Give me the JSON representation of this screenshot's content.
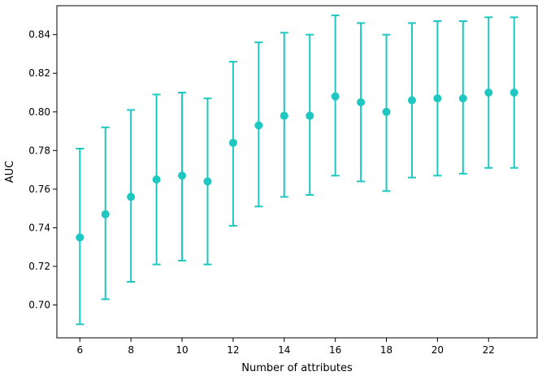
{
  "chart_data": {
    "type": "scatter",
    "title": "",
    "xlabel": "Number of attributes",
    "ylabel": "AUC",
    "xlim": [
      5.1,
      23.9
    ],
    "ylim": [
      0.683,
      0.855
    ],
    "xticks": [
      6,
      8,
      10,
      12,
      14,
      16,
      18,
      20,
      22
    ],
    "yticks": [
      0.7,
      0.72,
      0.74,
      0.76,
      0.78,
      0.8,
      0.82,
      0.84
    ],
    "xtick_labels": [
      "6",
      "8",
      "10",
      "12",
      "14",
      "16",
      "18",
      "20",
      "22"
    ],
    "ytick_labels": [
      "0.70",
      "0.72",
      "0.74",
      "0.76",
      "0.78",
      "0.80",
      "0.82",
      "0.84"
    ],
    "grid": false,
    "color": "#1fc7c1",
    "x": [
      6,
      7,
      8,
      9,
      10,
      11,
      12,
      13,
      14,
      15,
      16,
      17,
      18,
      19,
      20,
      21,
      22,
      23
    ],
    "y": [
      0.735,
      0.747,
      0.756,
      0.765,
      0.767,
      0.764,
      0.784,
      0.793,
      0.798,
      0.798,
      0.808,
      0.805,
      0.8,
      0.806,
      0.807,
      0.807,
      0.81,
      0.81
    ],
    "yerr_low": [
      0.69,
      0.703,
      0.712,
      0.721,
      0.723,
      0.721,
      0.741,
      0.751,
      0.756,
      0.757,
      0.767,
      0.764,
      0.759,
      0.766,
      0.767,
      0.768,
      0.771,
      0.771
    ],
    "yerr_high": [
      0.781,
      0.792,
      0.801,
      0.809,
      0.81,
      0.807,
      0.826,
      0.836,
      0.841,
      0.84,
      0.85,
      0.846,
      0.84,
      0.846,
      0.847,
      0.847,
      0.849,
      0.849
    ]
  }
}
